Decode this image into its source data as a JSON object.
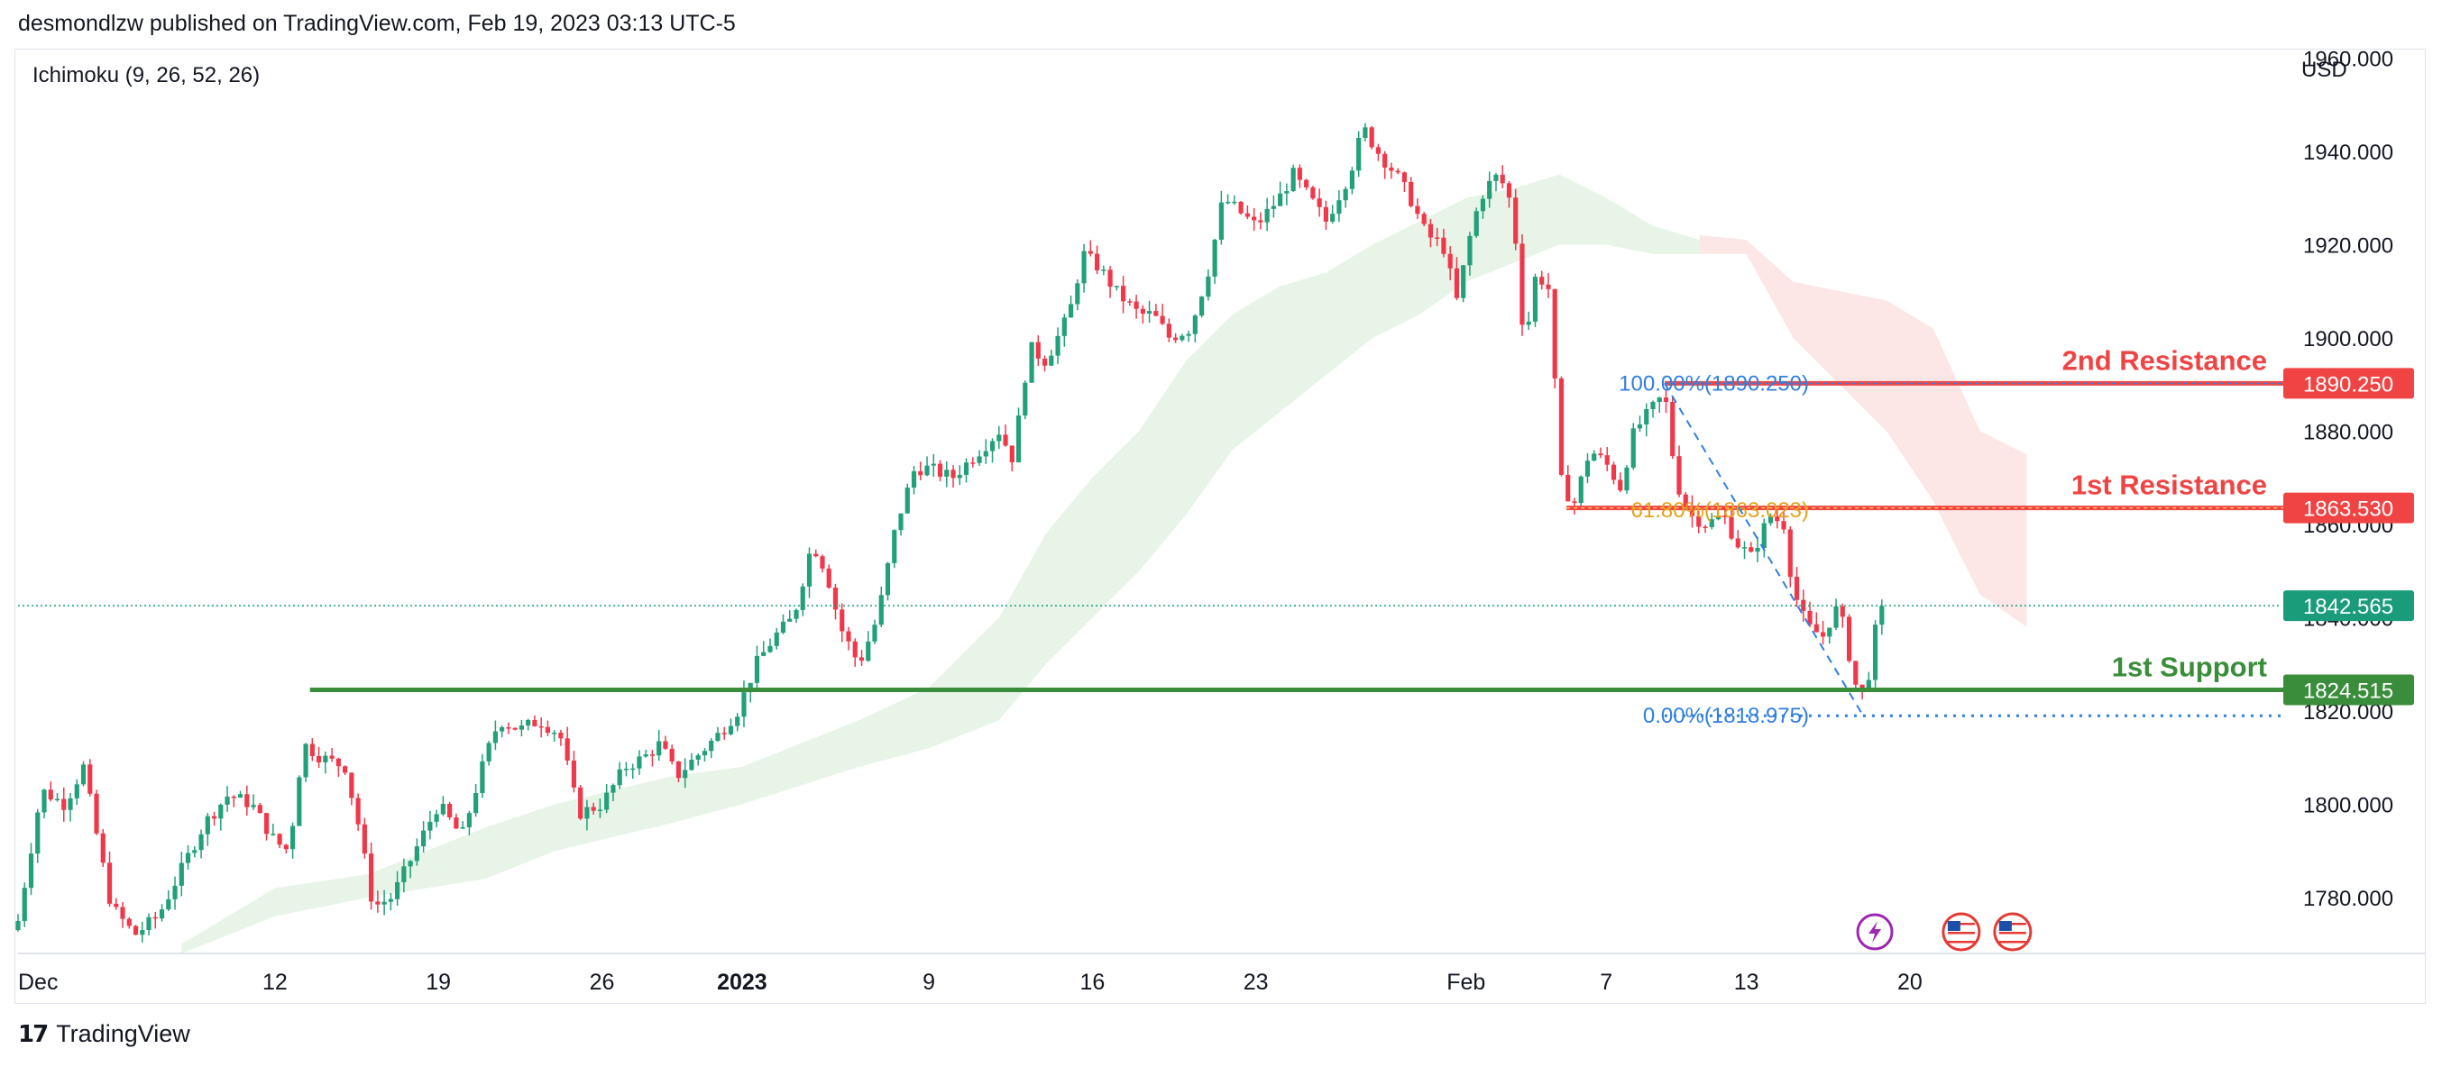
{
  "header": {
    "attribution": "desmondlzw published on TradingView.com, Feb 19, 2023 03:13 UTC-5"
  },
  "indicator": {
    "label": "Ichimoku (9, 26, 52, 26)"
  },
  "axis": {
    "currency": "USD"
  },
  "footer": {
    "brand": "TradingView"
  },
  "colors": {
    "up": "#22a07a",
    "down": "#f0384a",
    "support": "#3a8d3a",
    "resistance": "#f04444",
    "fib100": "#2f7fe0",
    "fib618": "#e5a21a",
    "cloud_green": "#e7f4e7",
    "cloud_red": "#fde6e6",
    "last_price": "#1a9c7b"
  },
  "chart_data": {
    "type": "candlestick",
    "ylabel": "USD",
    "ylim": [
      1768,
      1962
    ],
    "y_ticks": [
      "1960.000",
      "1940.000",
      "1920.000",
      "1900.000",
      "1880.000",
      "1860.000",
      "1840.000",
      "1820.000",
      "1800.000",
      "1780.000"
    ],
    "x_ticks": [
      {
        "label": "Dec",
        "bold": false,
        "day": 0
      },
      {
        "label": "12",
        "bold": false,
        "day": 11
      },
      {
        "label": "19",
        "bold": false,
        "day": 18
      },
      {
        "label": "26",
        "bold": false,
        "day": 25
      },
      {
        "label": "2023",
        "bold": true,
        "day": 31
      },
      {
        "label": "9",
        "bold": false,
        "day": 39
      },
      {
        "label": "16",
        "bold": false,
        "day": 46
      },
      {
        "label": "23",
        "bold": false,
        "day": 53
      },
      {
        "label": "Feb",
        "bold": false,
        "day": 62
      },
      {
        "label": "7",
        "bold": false,
        "day": 68
      },
      {
        "label": "13",
        "bold": false,
        "day": 74
      },
      {
        "label": "20",
        "bold": false,
        "day": 81
      }
    ],
    "close_path": [
      [
        0,
        1775
      ],
      [
        1,
        1803
      ],
      [
        2,
        1800
      ],
      [
        2.8,
        1808
      ],
      [
        3.5,
        1790
      ],
      [
        4,
        1778
      ],
      [
        5,
        1772
      ],
      [
        6,
        1776
      ],
      [
        7,
        1786
      ],
      [
        8,
        1796
      ],
      [
        9,
        1802
      ],
      [
        10,
        1800
      ],
      [
        11,
        1792
      ],
      [
        11.6,
        1790
      ],
      [
        12.2,
        1813
      ],
      [
        13,
        1810
      ],
      [
        14,
        1808
      ],
      [
        14.6,
        1795
      ],
      [
        15.2,
        1778
      ],
      [
        16,
        1780
      ],
      [
        17,
        1790
      ],
      [
        18,
        1800
      ],
      [
        19,
        1793
      ],
      [
        20,
        1810
      ],
      [
        20.6,
        1818
      ],
      [
        21.5,
        1816
      ],
      [
        22.3,
        1818
      ],
      [
        23.2,
        1815
      ],
      [
        24,
        1798
      ],
      [
        25,
        1800
      ],
      [
        26,
        1808
      ],
      [
        26.8,
        1810
      ],
      [
        27.5,
        1813
      ],
      [
        28.2,
        1806
      ],
      [
        29,
        1810
      ],
      [
        30,
        1815
      ],
      [
        30.8,
        1820
      ],
      [
        31.6,
        1830
      ],
      [
        32.4,
        1836
      ],
      [
        33.2,
        1840
      ],
      [
        34,
        1856
      ],
      [
        34.6,
        1850
      ],
      [
        35.2,
        1838
      ],
      [
        36,
        1830
      ],
      [
        36.8,
        1840
      ],
      [
        37.6,
        1860
      ],
      [
        38.4,
        1872
      ],
      [
        39,
        1872
      ],
      [
        40,
        1870
      ],
      [
        41,
        1875
      ],
      [
        42,
        1880
      ],
      [
        42.6,
        1874
      ],
      [
        43.3,
        1898
      ],
      [
        44,
        1895
      ],
      [
        45,
        1905
      ],
      [
        45.6,
        1918
      ],
      [
        46.3,
        1915
      ],
      [
        47,
        1910
      ],
      [
        48,
        1905
      ],
      [
        48.6,
        1905
      ],
      [
        49.3,
        1900
      ],
      [
        50.2,
        1902
      ],
      [
        51,
        1915
      ],
      [
        51.6,
        1930
      ],
      [
        52.3,
        1927
      ],
      [
        53,
        1924
      ],
      [
        54,
        1930
      ],
      [
        54.6,
        1935
      ],
      [
        55.3,
        1930
      ],
      [
        56,
        1925
      ],
      [
        57,
        1935
      ],
      [
        57.6,
        1945
      ],
      [
        58.2,
        1940
      ],
      [
        59,
        1935
      ],
      [
        59.6,
        1930
      ],
      [
        60.3,
        1922
      ],
      [
        61,
        1920
      ],
      [
        61.6,
        1908
      ],
      [
        62.3,
        1925
      ],
      [
        62.8,
        1932
      ],
      [
        63.4,
        1935
      ],
      [
        64,
        1928
      ],
      [
        64.5,
        1898
      ],
      [
        65,
        1914
      ],
      [
        65.6,
        1910
      ],
      [
        66,
        1870
      ],
      [
        66.6,
        1864
      ],
      [
        67.3,
        1876
      ],
      [
        68,
        1873
      ],
      [
        68.6,
        1868
      ],
      [
        69.2,
        1880
      ],
      [
        70,
        1885
      ],
      [
        70.5,
        1888
      ],
      [
        71,
        1869
      ],
      [
        71.6,
        1862
      ],
      [
        72.3,
        1860
      ],
      [
        73,
        1862
      ],
      [
        73.6,
        1856
      ],
      [
        74.2,
        1853
      ],
      [
        75,
        1862
      ],
      [
        75.6,
        1860
      ],
      [
        76,
        1846
      ],
      [
        76.6,
        1838
      ],
      [
        77.3,
        1836
      ],
      [
        77.8,
        1842
      ],
      [
        78.2,
        1838
      ],
      [
        78.6,
        1826
      ],
      [
        79,
        1824
      ],
      [
        79.3,
        1829
      ],
      [
        79.6,
        1840
      ],
      [
        80,
        1842.565
      ]
    ],
    "cloud_green_top": [
      [
        7,
        1770
      ],
      [
        11,
        1782
      ],
      [
        15,
        1785
      ],
      [
        20,
        1795
      ],
      [
        23,
        1800
      ],
      [
        28,
        1806
      ],
      [
        31,
        1808
      ],
      [
        36,
        1818
      ],
      [
        39,
        1825
      ],
      [
        42,
        1840
      ],
      [
        44,
        1858
      ],
      [
        46,
        1870
      ],
      [
        48,
        1880
      ],
      [
        50,
        1895
      ],
      [
        52,
        1905
      ],
      [
        54,
        1911
      ],
      [
        56,
        1914
      ],
      [
        58,
        1920
      ],
      [
        60,
        1925
      ],
      [
        62,
        1930
      ],
      [
        64,
        1932
      ],
      [
        66,
        1935
      ],
      [
        68,
        1930
      ],
      [
        70,
        1924
      ],
      [
        72,
        1921
      ]
    ],
    "cloud_green_bottom": [
      [
        7,
        1768
      ],
      [
        11,
        1776
      ],
      [
        15,
        1780
      ],
      [
        20,
        1784
      ],
      [
        23,
        1790
      ],
      [
        28,
        1796
      ],
      [
        31,
        1800
      ],
      [
        36,
        1808
      ],
      [
        39,
        1812
      ],
      [
        42,
        1818
      ],
      [
        44,
        1830
      ],
      [
        46,
        1840
      ],
      [
        48,
        1850
      ],
      [
        50,
        1862
      ],
      [
        52,
        1876
      ],
      [
        54,
        1884
      ],
      [
        56,
        1892
      ],
      [
        58,
        1900
      ],
      [
        60,
        1905
      ],
      [
        62,
        1912
      ],
      [
        64,
        1916
      ],
      [
        66,
        1920
      ],
      [
        68,
        1920
      ],
      [
        70,
        1918
      ],
      [
        72,
        1918
      ]
    ],
    "cloud_red_top": [
      [
        72,
        1922
      ],
      [
        74,
        1921
      ],
      [
        76,
        1912
      ],
      [
        78,
        1910
      ],
      [
        80,
        1908
      ],
      [
        82,
        1902
      ],
      [
        84,
        1880
      ],
      [
        86,
        1875
      ]
    ],
    "cloud_red_bottom": [
      [
        72,
        1918
      ],
      [
        74,
        1918
      ],
      [
        76,
        1900
      ],
      [
        78,
        1890
      ],
      [
        80,
        1880
      ],
      [
        82,
        1865
      ],
      [
        84,
        1845
      ],
      [
        86,
        1838
      ]
    ],
    "levels": [
      {
        "name": "2nd Resistance",
        "value": "1890.250",
        "price": 1890.25,
        "from_day": 70.5,
        "kind": "resistance"
      },
      {
        "name": "1st Resistance",
        "value": "1863.530",
        "price": 1863.53,
        "from_day": 66.3,
        "kind": "resistance"
      },
      {
        "name": "1st Support",
        "value": "1824.515",
        "price": 1824.515,
        "from_day": 12.5,
        "kind": "support"
      }
    ],
    "last_price": {
      "value": "1842.565",
      "price": 1842.565
    },
    "fibonacci": [
      {
        "label": "100.00%(1890.250)",
        "price": 1890.25,
        "color_key": "fib100"
      },
      {
        "label": "61.80%(1863.023)",
        "price": 1863.023,
        "color_key": "fib618"
      },
      {
        "label": "0.00%(1818.975)",
        "price": 1818.975,
        "color_key": "fib100"
      }
    ],
    "event_icons": [
      {
        "name": "lightning-event-icon",
        "day": 79.5
      },
      {
        "name": "us-flag-event-icon-1",
        "day": 83.2
      },
      {
        "name": "us-flag-event-icon-2",
        "day": 85.4
      }
    ]
  }
}
